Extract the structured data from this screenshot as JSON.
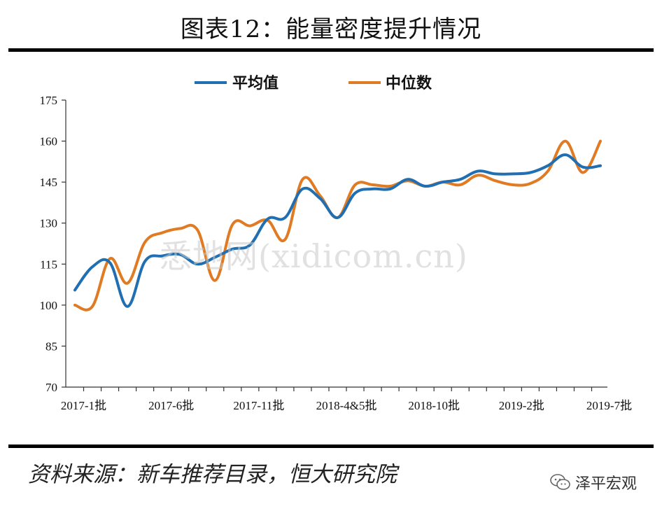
{
  "title": "图表12：能量密度提升情况",
  "source": "资料来源：新车推荐目录，恒大研究院",
  "watermark": "悉地网(xidicom.cn)",
  "brand": "泽平宏观",
  "chart_data": {
    "type": "line",
    "title": "图表12：能量密度提升情况",
    "ylim": [
      70,
      175
    ],
    "yticks": [
      70,
      85,
      100,
      115,
      130,
      145,
      160,
      175
    ],
    "x_tick_labels": [
      {
        "index": 0,
        "label": "2017-1批"
      },
      {
        "index": 5,
        "label": "2017-6批"
      },
      {
        "index": 10,
        "label": "2017-11批"
      },
      {
        "index": 15,
        "label": "2018-4&5批"
      },
      {
        "index": 20,
        "label": "2018-10批"
      },
      {
        "index": 25,
        "label": "2019-2批"
      },
      {
        "index": 30,
        "label": "2019-7批"
      }
    ],
    "legend": "top",
    "grid": false,
    "series": [
      {
        "name": "平均值",
        "color": "#1f6fb2",
        "values": [
          105.5,
          114,
          115.5,
          99.5,
          116,
          118,
          118.5,
          115,
          117.5,
          120.5,
          122,
          131.5,
          132,
          142.5,
          139,
          132,
          141,
          142.5,
          142.5,
          146,
          143.5,
          145,
          146,
          149,
          148,
          148,
          148.5,
          151,
          155,
          150.5,
          151
        ]
      },
      {
        "name": "中位数",
        "color": "#e07b23",
        "values": [
          100,
          99.5,
          117,
          108,
          123,
          126.5,
          128,
          127.5,
          109,
          129.5,
          129,
          131,
          124,
          146,
          140,
          132,
          144,
          144,
          143.5,
          145.5,
          143.5,
          145,
          144,
          147.5,
          145.5,
          144,
          144.5,
          149,
          160,
          148.5,
          160
        ]
      }
    ]
  }
}
